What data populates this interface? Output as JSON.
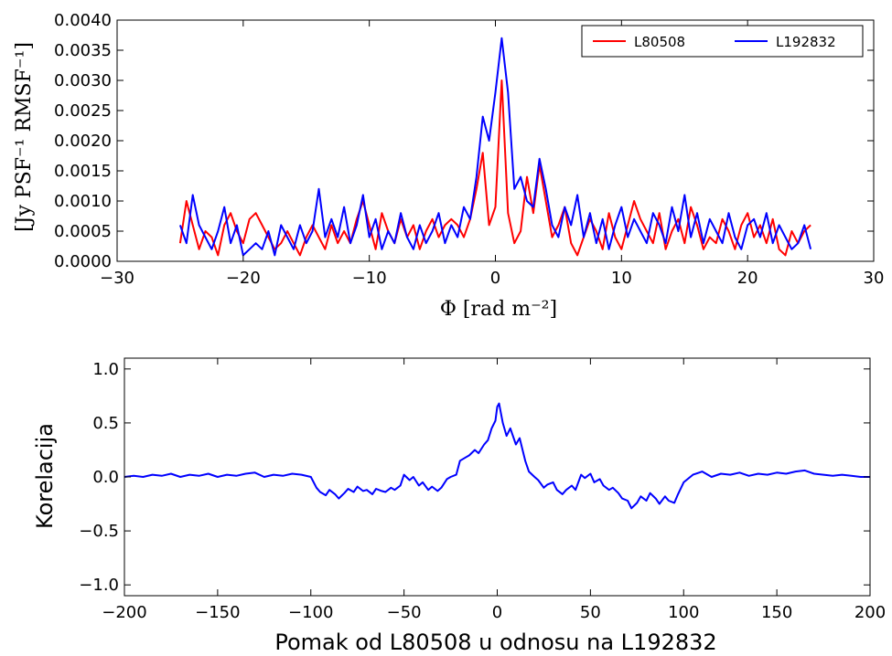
{
  "chart_data": [
    {
      "type": "line",
      "xlabel": "Φ [rad m⁻²]",
      "ylabel": "[Jy PSF⁻¹ RMSF⁻¹]",
      "xlim": [
        -30,
        30
      ],
      "ylim": [
        0,
        0.004
      ],
      "xticks": [
        -30,
        -20,
        -10,
        0,
        10,
        20,
        30
      ],
      "xtick_labels": [
        "−30",
        "−20",
        "−10",
        "0",
        "10",
        "20",
        "30"
      ],
      "yticks": [
        0,
        0.0005,
        0.001,
        0.0015,
        0.002,
        0.0025,
        0.003,
        0.0035,
        0.004
      ],
      "ytick_labels": [
        "0.0000",
        "0.0005",
        "0.0010",
        "0.0015",
        "0.0020",
        "0.0025",
        "0.0030",
        "0.0035",
        "0.0040"
      ],
      "grid": false,
      "legend": "top-right",
      "series": [
        {
          "name": "L80508",
          "color": "#ff0000",
          "x": [
            -25,
            -24.5,
            -24,
            -23.5,
            -23,
            -22.5,
            -22,
            -21.5,
            -21,
            -20.5,
            -20,
            -19.5,
            -19,
            -18.5,
            -18,
            -17.5,
            -17,
            -16.5,
            -16,
            -15.5,
            -15,
            -14.5,
            -14,
            -13.5,
            -13,
            -12.5,
            -12,
            -11.5,
            -11,
            -10.5,
            -10,
            -9.5,
            -9,
            -8.5,
            -8,
            -7.5,
            -7,
            -6.5,
            -6,
            -5.5,
            -5,
            -4.5,
            -4,
            -3.5,
            -3,
            -2.5,
            -2,
            -1.5,
            -1,
            -0.5,
            0,
            0.5,
            1,
            1.5,
            2,
            2.5,
            3,
            3.5,
            4,
            4.5,
            5,
            5.5,
            6,
            6.5,
            7,
            7.5,
            8,
            8.5,
            9,
            9.5,
            10,
            10.5,
            11,
            11.5,
            12,
            12.5,
            13,
            13.5,
            14,
            14.5,
            15,
            15.5,
            16,
            16.5,
            17,
            17.5,
            18,
            18.5,
            19,
            19.5,
            20,
            20.5,
            21,
            21.5,
            22,
            22.5,
            23,
            23.5,
            24,
            24.5,
            25
          ],
          "y": [
            0.0003,
            0.001,
            0.0006,
            0.0002,
            0.0005,
            0.0004,
            0.0001,
            0.0006,
            0.0008,
            0.0005,
            0.0003,
            0.0007,
            0.0008,
            0.0006,
            0.0004,
            0.0002,
            0.0003,
            0.0005,
            0.0003,
            0.0001,
            0.0004,
            0.0006,
            0.0004,
            0.0002,
            0.0006,
            0.0003,
            0.0005,
            0.0003,
            0.0007,
            0.001,
            0.0006,
            0.0002,
            0.0008,
            0.0005,
            0.0003,
            0.0007,
            0.0004,
            0.0006,
            0.0002,
            0.0005,
            0.0007,
            0.0004,
            0.0006,
            0.0007,
            0.0006,
            0.0004,
            0.0007,
            0.0012,
            0.0018,
            0.0006,
            0.0009,
            0.003,
            0.0008,
            0.0003,
            0.0005,
            0.0014,
            0.0008,
            0.0016,
            0.001,
            0.0004,
            0.0006,
            0.0009,
            0.0003,
            0.0001,
            0.0004,
            0.0007,
            0.0005,
            0.0002,
            0.0008,
            0.0004,
            0.0002,
            0.0006,
            0.001,
            0.0007,
            0.0005,
            0.0003,
            0.0008,
            0.0002,
            0.0005,
            0.0007,
            0.0003,
            0.0009,
            0.0006,
            0.0002,
            0.0004,
            0.0003,
            0.0007,
            0.0005,
            0.0002,
            0.0006,
            0.0008,
            0.0004,
            0.0006,
            0.0003,
            0.0007,
            0.0002,
            0.0001,
            0.0005,
            0.0003,
            0.0005,
            0.0006
          ]
        },
        {
          "name": "L192832",
          "color": "#0000ff",
          "x": [
            -25,
            -24.5,
            -24,
            -23.5,
            -23,
            -22.5,
            -22,
            -21.5,
            -21,
            -20.5,
            -20,
            -19.5,
            -19,
            -18.5,
            -18,
            -17.5,
            -17,
            -16.5,
            -16,
            -15.5,
            -15,
            -14.5,
            -14,
            -13.5,
            -13,
            -12.5,
            -12,
            -11.5,
            -11,
            -10.5,
            -10,
            -9.5,
            -9,
            -8.5,
            -8,
            -7.5,
            -7,
            -6.5,
            -6,
            -5.5,
            -5,
            -4.5,
            -4,
            -3.5,
            -3,
            -2.5,
            -2,
            -1.5,
            -1,
            -0.5,
            0,
            0.5,
            1,
            1.5,
            2,
            2.5,
            3,
            3.5,
            4,
            4.5,
            5,
            5.5,
            6,
            6.5,
            7,
            7.5,
            8,
            8.5,
            9,
            9.5,
            10,
            10.5,
            11,
            11.5,
            12,
            12.5,
            13,
            13.5,
            14,
            14.5,
            15,
            15.5,
            16,
            16.5,
            17,
            17.5,
            18,
            18.5,
            19,
            19.5,
            20,
            20.5,
            21,
            21.5,
            22,
            22.5,
            23,
            23.5,
            24,
            24.5,
            25
          ],
          "y": [
            0.0006,
            0.0003,
            0.0011,
            0.0006,
            0.0004,
            0.0002,
            0.0005,
            0.0009,
            0.0003,
            0.0006,
            0.0001,
            0.0002,
            0.0003,
            0.0002,
            0.0005,
            0.0001,
            0.0006,
            0.0004,
            0.0002,
            0.0006,
            0.0003,
            0.0005,
            0.0012,
            0.0004,
            0.0007,
            0.0004,
            0.0009,
            0.0003,
            0.0006,
            0.0011,
            0.0004,
            0.0007,
            0.0002,
            0.0005,
            0.0003,
            0.0008,
            0.0004,
            0.0002,
            0.0006,
            0.0003,
            0.0005,
            0.0008,
            0.0003,
            0.0006,
            0.0004,
            0.0009,
            0.0007,
            0.0014,
            0.0024,
            0.002,
            0.0028,
            0.0037,
            0.0028,
            0.0012,
            0.0014,
            0.001,
            0.0009,
            0.0017,
            0.0012,
            0.0006,
            0.0004,
            0.0009,
            0.0006,
            0.0011,
            0.0004,
            0.0008,
            0.0003,
            0.0007,
            0.0002,
            0.0006,
            0.0009,
            0.0004,
            0.0007,
            0.0005,
            0.0003,
            0.0008,
            0.0006,
            0.0003,
            0.0009,
            0.0005,
            0.0011,
            0.0004,
            0.0008,
            0.0003,
            0.0007,
            0.0005,
            0.0003,
            0.0008,
            0.0004,
            0.0002,
            0.0006,
            0.0007,
            0.0004,
            0.0008,
            0.0003,
            0.0006,
            0.0004,
            0.0002,
            0.0003,
            0.0006,
            0.0002
          ]
        }
      ]
    },
    {
      "type": "line",
      "xlabel": "Pomak od L80508 u odnosu na L192832",
      "ylabel": "Korelacija",
      "xlim": [
        -200,
        200
      ],
      "ylim": [
        -1.1,
        1.1
      ],
      "xticks": [
        -200,
        -150,
        -100,
        -50,
        0,
        50,
        100,
        150,
        200
      ],
      "xtick_labels": [
        "−200",
        "−150",
        "−100",
        "−50",
        "0",
        "50",
        "100",
        "150",
        "200"
      ],
      "yticks": [
        -1.0,
        -0.5,
        0.0,
        0.5,
        1.0
      ],
      "ytick_labels": [
        "−1.0",
        "−0.5",
        "0.0",
        "0.5",
        "1.0"
      ],
      "grid": false,
      "series": [
        {
          "color": "#0000ff",
          "x": [
            -200,
            -195,
            -190,
            -185,
            -180,
            -175,
            -170,
            -165,
            -160,
            -155,
            -150,
            -145,
            -140,
            -135,
            -130,
            -125,
            -120,
            -115,
            -110,
            -105,
            -100,
            -97,
            -95,
            -92,
            -90,
            -87,
            -85,
            -82,
            -80,
            -77,
            -75,
            -72,
            -70,
            -67,
            -65,
            -62,
            -60,
            -57,
            -55,
            -52,
            -50,
            -47,
            -45,
            -42,
            -40,
            -37,
            -35,
            -32,
            -30,
            -27,
            -25,
            -22,
            -20,
            -17,
            -15,
            -12,
            -10,
            -7,
            -5,
            -3,
            -1,
            0,
            1,
            3,
            5,
            7,
            10,
            12,
            15,
            17,
            20,
            22,
            25,
            27,
            30,
            32,
            35,
            37,
            40,
            42,
            45,
            47,
            50,
            52,
            55,
            57,
            60,
            62,
            65,
            67,
            70,
            72,
            75,
            77,
            80,
            82,
            85,
            87,
            90,
            92,
            95,
            97,
            100,
            105,
            110,
            115,
            120,
            125,
            130,
            135,
            140,
            145,
            150,
            155,
            160,
            165,
            170,
            175,
            180,
            185,
            190,
            195,
            200
          ],
          "y": [
            0.0,
            0.01,
            0.0,
            0.02,
            0.01,
            0.03,
            0.0,
            0.02,
            0.01,
            0.03,
            0.0,
            0.02,
            0.01,
            0.03,
            0.04,
            0.0,
            0.02,
            0.01,
            0.03,
            0.02,
            0.0,
            -0.1,
            -0.14,
            -0.17,
            -0.12,
            -0.16,
            -0.2,
            -0.15,
            -0.11,
            -0.14,
            -0.09,
            -0.13,
            -0.12,
            -0.16,
            -0.11,
            -0.13,
            -0.14,
            -0.1,
            -0.12,
            -0.08,
            0.02,
            -0.03,
            0.0,
            -0.08,
            -0.05,
            -0.12,
            -0.09,
            -0.13,
            -0.1,
            -0.02,
            0.0,
            0.02,
            0.15,
            0.18,
            0.2,
            0.25,
            0.22,
            0.3,
            0.34,
            0.45,
            0.52,
            0.65,
            0.68,
            0.5,
            0.38,
            0.45,
            0.3,
            0.36,
            0.15,
            0.05,
            0.0,
            -0.03,
            -0.1,
            -0.07,
            -0.05,
            -0.12,
            -0.16,
            -0.12,
            -0.08,
            -0.12,
            0.02,
            -0.01,
            0.03,
            -0.05,
            -0.02,
            -0.08,
            -0.12,
            -0.1,
            -0.15,
            -0.2,
            -0.22,
            -0.29,
            -0.24,
            -0.18,
            -0.22,
            -0.15,
            -0.2,
            -0.25,
            -0.18,
            -0.22,
            -0.24,
            -0.16,
            -0.05,
            0.02,
            0.05,
            0.0,
            0.03,
            0.02,
            0.04,
            0.01,
            0.03,
            0.02,
            0.04,
            0.03,
            0.05,
            0.06,
            0.03,
            0.02,
            0.01,
            0.02,
            0.01,
            0.0,
            0.0
          ]
        }
      ]
    }
  ]
}
